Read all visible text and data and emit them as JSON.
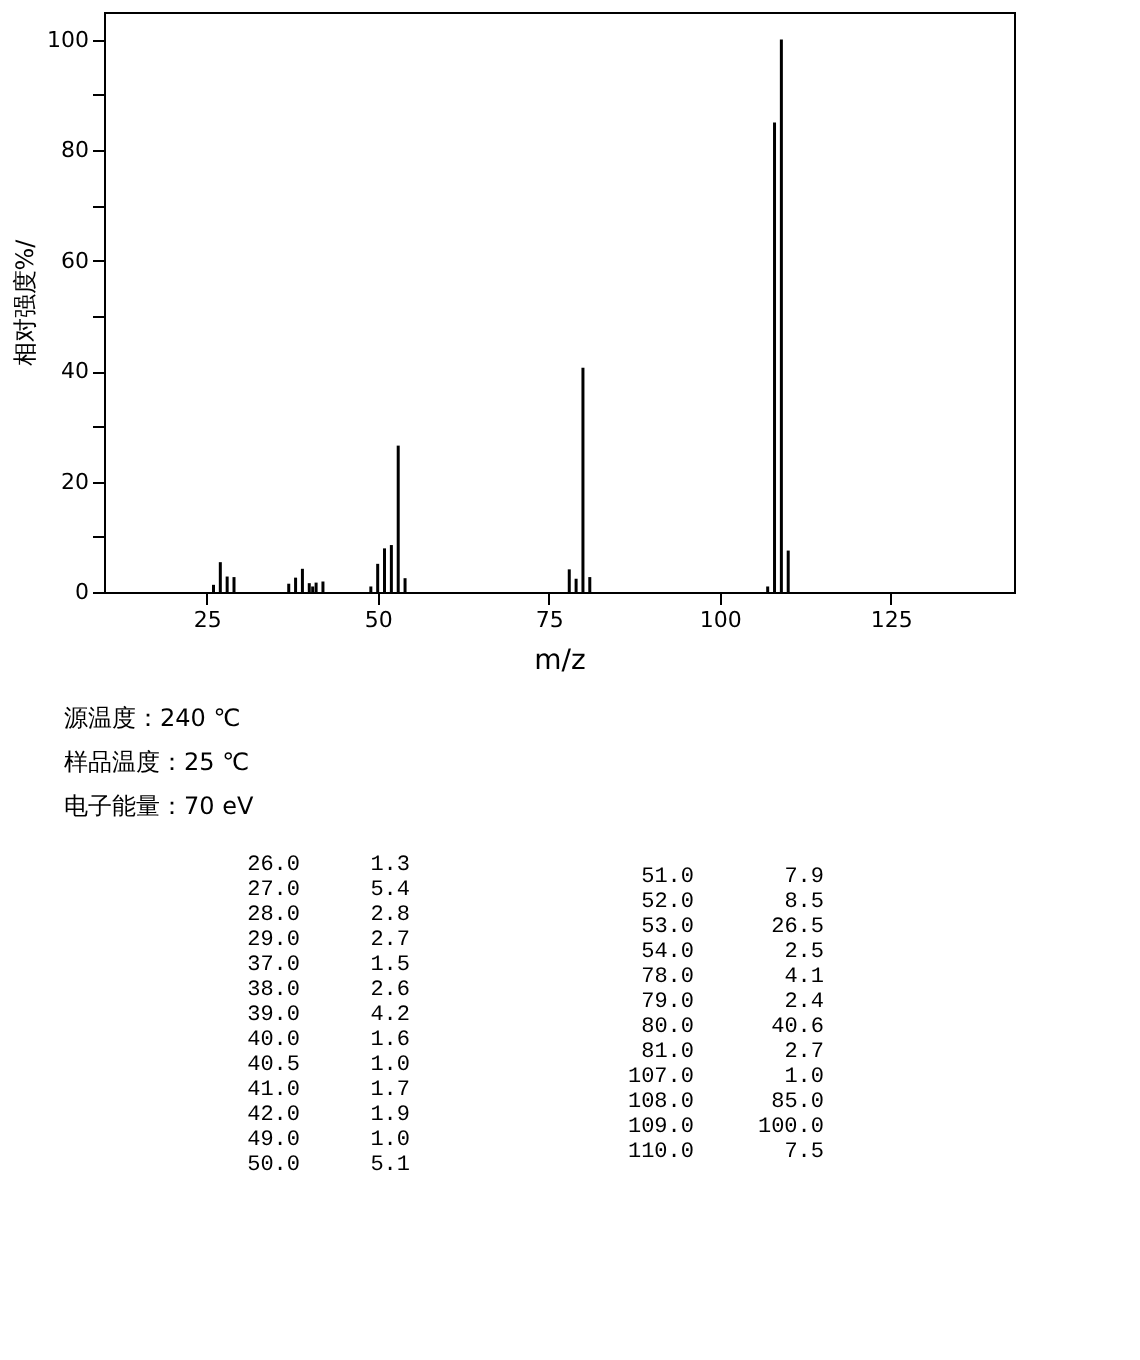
{
  "chart_data": {
    "type": "bar",
    "xlabel": "m/z",
    "ylabel": "相对强度%/",
    "x": [
      26.0,
      27.0,
      28.0,
      29.0,
      37.0,
      38.0,
      39.0,
      40.0,
      40.5,
      41.0,
      42.0,
      49.0,
      50.0,
      51.0,
      52.0,
      53.0,
      54.0,
      78.0,
      79.0,
      80.0,
      81.0,
      107.0,
      108.0,
      109.0,
      110.0
    ],
    "values": [
      1.3,
      5.4,
      2.8,
      2.7,
      1.5,
      2.6,
      4.2,
      1.6,
      1.0,
      1.7,
      1.9,
      1.0,
      5.1,
      7.9,
      8.5,
      26.5,
      2.5,
      4.1,
      2.4,
      40.6,
      2.7,
      1.0,
      85.0,
      100.0,
      7.5
    ],
    "color": "#000000",
    "xlim": [
      10,
      143
    ],
    "xticks": [
      25,
      50,
      75,
      100,
      125
    ],
    "ylim": [
      0,
      105
    ],
    "yticks": [
      0,
      {
        "value": 10,
        "label": null
      },
      20,
      {
        "value": 30,
        "label": null
      },
      40,
      {
        "value": 50,
        "label": null
      },
      60,
      {
        "value": 70,
        "label": null
      },
      80,
      {
        "value": 90,
        "label": null
      },
      100
    ],
    "grid": false,
    "annotations": [
      "源温度：240 ℃",
      "样品温度：25 ℃",
      "电子能量：70 eV",
      "26.0",
      "1.3",
      "27.0",
      "5.4",
      "28.0",
      "2.8",
      "29.0",
      "2.7",
      "37.0",
      "1.5",
      "38.0",
      "2.6",
      "39.0",
      "4.2",
      "40.0",
      "1.6",
      "40.5",
      "1.0",
      "41.0",
      "1.7",
      "42.0",
      "1.9",
      "49.0",
      "1.0",
      "50.0",
      "5.1",
      "51.0",
      "7.9",
      "52.0",
      "8.5",
      "53.0",
      "26.5",
      "54.0",
      "2.5",
      "78.0",
      "4.1",
      "79.0",
      "2.4",
      "80.0",
      "40.6",
      "81.0",
      "2.7",
      "107.0",
      "1.0",
      "108.0",
      "85.0",
      "109.0",
      "100.0",
      "110.0",
      "7.5"
    ]
  }
}
